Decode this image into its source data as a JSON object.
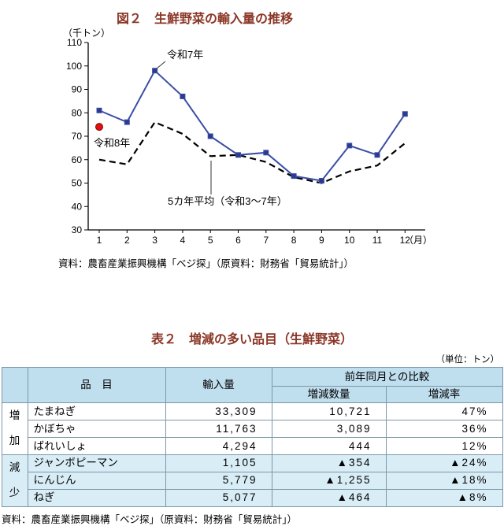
{
  "page": {
    "chart_title": "図２　生鮮野菜の輸入量の推移",
    "chart_source": "資料：農畜産業振興機構「ベジ探」（原資料：財務省「貿易統計」）",
    "table_title": "表２　増減の多い品目（生鮮野菜）",
    "table_unit_note": "（単位：トン）",
    "table_source": "資料：農畜産業振興機構「ベジ探」（原資料：財務省「貿易統計」）"
  },
  "chart": {
    "annotations": {
      "r7": "令和7年",
      "r8": "令和8年",
      "avg": "5カ年平均（令和3～7年）"
    }
  },
  "chart_data": {
    "type": "line",
    "title": "図２　生鮮野菜の輸入量の推移",
    "ylabel": "（千トン）",
    "xlabel": "（月）",
    "x": [
      1,
      2,
      3,
      4,
      5,
      6,
      7,
      8,
      9,
      10,
      11,
      12
    ],
    "ylim": [
      30,
      110
    ],
    "yticks": [
      30,
      40,
      50,
      60,
      70,
      80,
      90,
      100,
      110
    ],
    "grid": false,
    "legend_position": "annotated-on-chart",
    "series": [
      {
        "name": "令和7年",
        "values": [
          81,
          76,
          98,
          87,
          70,
          62,
          63,
          53,
          51,
          66,
          62,
          79.5
        ],
        "color": "#3a4ea5",
        "line": "solid",
        "marker": "square"
      },
      {
        "name": "5カ年平均（令和3～7年）",
        "values": [
          60,
          58,
          76,
          71,
          61.5,
          62,
          59,
          52.5,
          50,
          55,
          57.5,
          67
        ],
        "color": "#000000",
        "line": "dashed",
        "marker": "none"
      },
      {
        "name": "令和8年",
        "x": [
          1
        ],
        "values": [
          74
        ],
        "color": "#e01010",
        "line": "none",
        "marker": "circle"
      }
    ]
  },
  "table": {
    "headers": {
      "item": "品　目",
      "import": "輸入量",
      "comparison": "前年同月との比較",
      "qty": "増減数量",
      "rate": "増減率"
    },
    "groups": [
      {
        "label": "増加"
      },
      {
        "label": "減少"
      }
    ],
    "rows": [
      {
        "group": "増加",
        "item": "たまねぎ",
        "import": "33,309",
        "qty": "10,721",
        "rate": "47%"
      },
      {
        "group": "増加",
        "item": "かぼちゃ",
        "import": "11,763",
        "qty": "3,089",
        "rate": "36%"
      },
      {
        "group": "増加",
        "item": "ばれいしょ",
        "import": "4,294",
        "qty": "444",
        "rate": "12%"
      },
      {
        "group": "減少",
        "item": "ジャンボピーマン",
        "import": "1,105",
        "qty": "▲354",
        "rate": "▲24%"
      },
      {
        "group": "減少",
        "item": "にんじん",
        "import": "5,779",
        "qty": "▲1,255",
        "rate": "▲18%"
      },
      {
        "group": "減少",
        "item": "ねぎ",
        "import": "5,077",
        "qty": "▲464",
        "rate": "▲8%"
      }
    ]
  },
  "colors": {
    "title_text": "#8b3626",
    "line_blue": "#3a4ea5",
    "dot_red": "#e01010",
    "header_bg": "#bfdeee",
    "decrease_row_bg": "#d9edf7"
  }
}
